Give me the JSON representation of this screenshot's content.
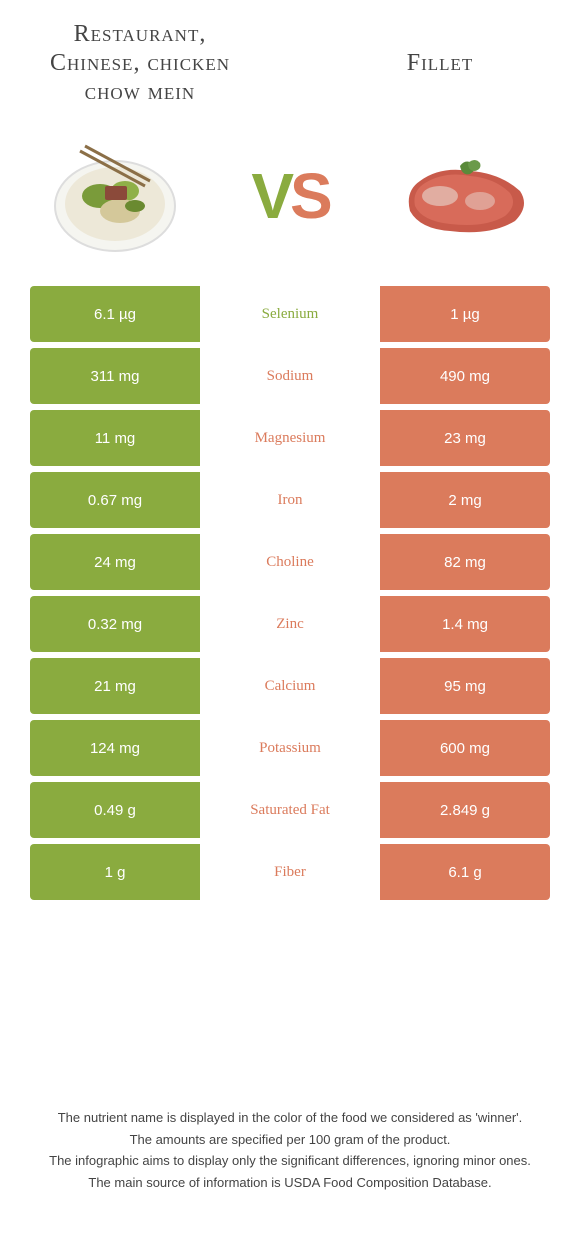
{
  "header": {
    "left_title": "Restaurant, Chinese, chicken chow mein",
    "right_title": "Fillet",
    "vs_v": "V",
    "vs_s": "S"
  },
  "colors": {
    "green": "#8aab3f",
    "orange": "#db7b5c",
    "text": "#444444",
    "bg": "#ffffff"
  },
  "rows": [
    {
      "left": "6.1 µg",
      "name": "Selenium",
      "right": "1 µg",
      "winner": "left"
    },
    {
      "left": "311 mg",
      "name": "Sodium",
      "right": "490 mg",
      "winner": "right"
    },
    {
      "left": "11 mg",
      "name": "Magnesium",
      "right": "23 mg",
      "winner": "right"
    },
    {
      "left": "0.67 mg",
      "name": "Iron",
      "right": "2 mg",
      "winner": "right"
    },
    {
      "left": "24 mg",
      "name": "Choline",
      "right": "82 mg",
      "winner": "right"
    },
    {
      "left": "0.32 mg",
      "name": "Zinc",
      "right": "1.4 mg",
      "winner": "right"
    },
    {
      "left": "21 mg",
      "name": "Calcium",
      "right": "95 mg",
      "winner": "right"
    },
    {
      "left": "124 mg",
      "name": "Potassium",
      "right": "600 mg",
      "winner": "right"
    },
    {
      "left": "0.49 g",
      "name": "Saturated Fat",
      "right": "2.849 g",
      "winner": "right"
    },
    {
      "left": "1 g",
      "name": "Fiber",
      "right": "6.1 g",
      "winner": "right"
    }
  ],
  "footer": {
    "line1": "The nutrient name is displayed in the color of the food we considered as 'winner'.",
    "line2": "The amounts are specified per 100 gram of the product.",
    "line3": "The infographic aims to display only the significant differences, ignoring minor ones.",
    "line4": "The main source of information is USDA Food Composition Database."
  }
}
